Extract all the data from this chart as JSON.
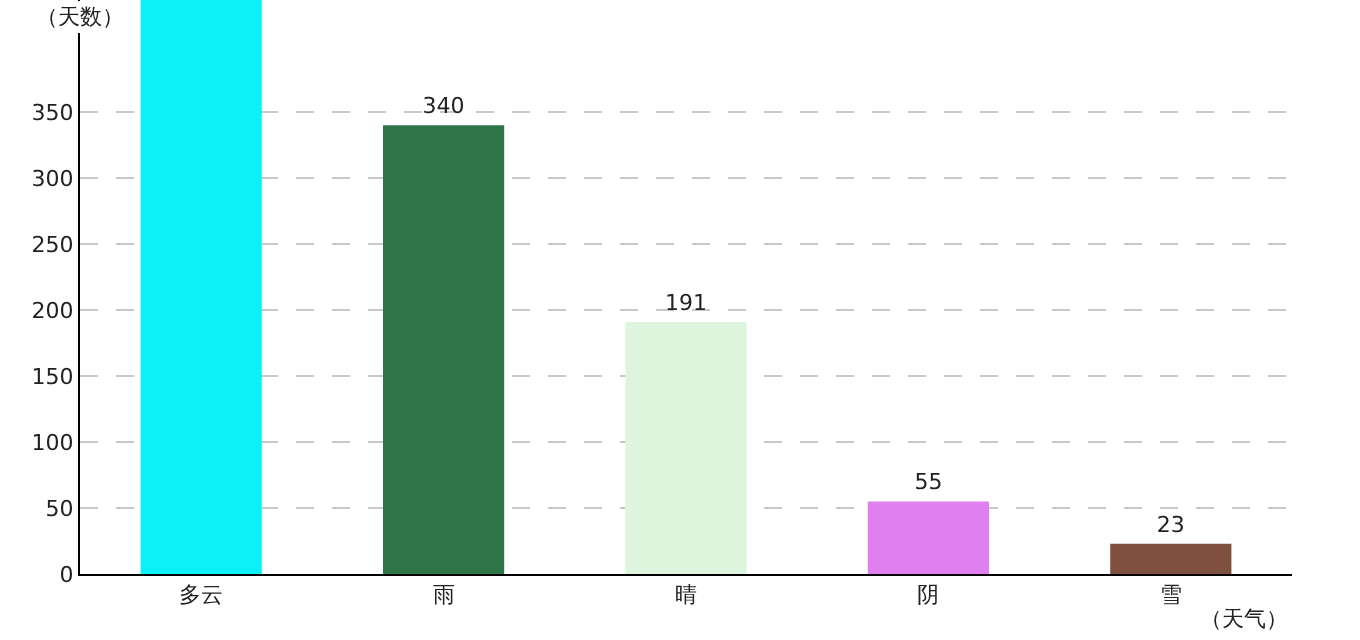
{
  "chart_data": {
    "type": "bar",
    "xlabel": "（天气）",
    "ylabel": "（天数）",
    "categories": [
      "多云",
      "雨",
      "晴",
      "阴",
      "雪"
    ],
    "values": [
      435,
      340,
      191,
      55,
      23
    ],
    "colors": [
      "#0cf0f8",
      "#2e7548",
      "#dcf5dc",
      "#e080f0",
      "#7f4f3f"
    ],
    "value_labels": [
      null,
      "340",
      "191",
      "55",
      "23"
    ],
    "ylim": [
      0,
      435
    ],
    "yticks": [
      0,
      50,
      100,
      150,
      200,
      250,
      300,
      350
    ],
    "grid": "y"
  }
}
